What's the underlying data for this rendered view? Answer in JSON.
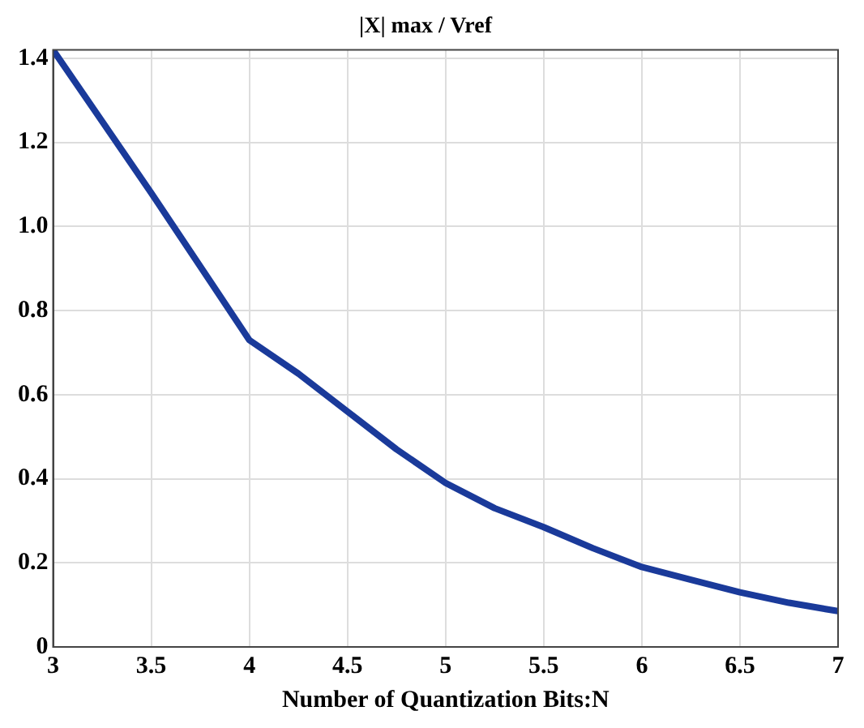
{
  "chart_data": {
    "type": "line",
    "title": "|X| max / Vref",
    "xlabel": "Number of Quantization Bits:N",
    "x": [
      3,
      3.25,
      3.5,
      3.6,
      3.8,
      4,
      4.25,
      4.5,
      4.75,
      5,
      5.25,
      5.5,
      5.75,
      6,
      6.25,
      6.5,
      6.75,
      7
    ],
    "series": [
      {
        "color": "#1a3a9a",
        "values": [
          1.42,
          1.25,
          1.08,
          1.01,
          0.87,
          0.73,
          0.65,
          0.56,
          0.47,
          0.39,
          0.33,
          0.285,
          0.235,
          0.19,
          0.16,
          0.13,
          0.105,
          0.085
        ]
      }
    ],
    "xlim": [
      3,
      7
    ],
    "xticks": [
      3,
      3.5,
      4,
      4.5,
      5,
      5.5,
      6,
      6.5,
      7
    ],
    "ylim": [
      0,
      1.42
    ],
    "yticks": [
      0,
      0.2,
      0.4,
      0.6,
      0.8,
      {
        "value": 1,
        "label": "1.0"
      },
      1.2,
      1.4
    ],
    "grid": true,
    "marker": "none",
    "line_style": "solid"
  }
}
